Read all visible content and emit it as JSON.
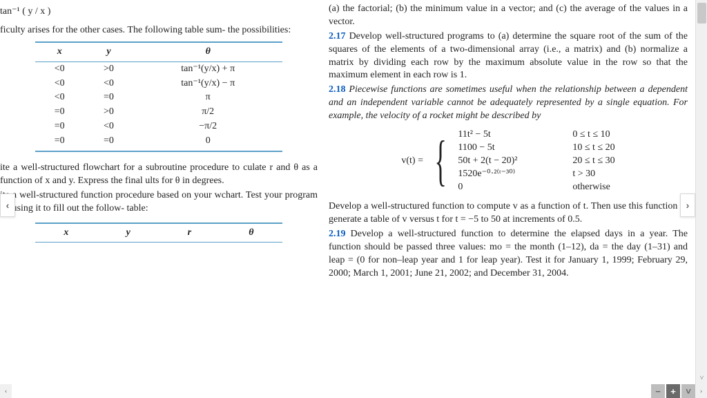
{
  "left": {
    "eq1": "tan⁻¹ ( y / x )",
    "p1": "ficulty arises for the other cases. The following table sum- the possibilities:",
    "table": {
      "headers": [
        "x",
        "y",
        "θ"
      ],
      "rows": [
        [
          "<0",
          ">0",
          "tan⁻¹(y/x) + π"
        ],
        [
          "<0",
          "<0",
          "tan⁻¹(y/x) − π"
        ],
        [
          "<0",
          "=0",
          "π"
        ],
        [
          "=0",
          ">0",
          "π/2"
        ],
        [
          "=0",
          "<0",
          "−π/2"
        ],
        [
          "=0",
          "=0",
          "0"
        ]
      ]
    },
    "p2": "ite a well-structured flowchart for a subroutine procedure to culate r and θ as a function of x and y. Express the final ults for θ in degrees.",
    "p3": "ite a well-structured function procedure based on your wchart. Test your program by using it to fill out the follow- table:",
    "table2_headers": [
      "x",
      "y",
      "r",
      "θ"
    ]
  },
  "right": {
    "p0": "(a) the factorial; (b) the minimum value in a vector; and (c) the average of the values in a vector.",
    "p217_num": "2.17",
    "p217": " Develop well-structured programs to (a) determine the square root of the sum of the squares of the elements of a two-dimensional array (i.e., a matrix) and (b) normalize a matrix by dividing each row by the maximum absolute value in the row so that the maximum element in each row is 1.",
    "p218_num": "2.18",
    "p218a": " Piecewise functions are sometimes useful when the relationship between a dependent and an independent variable cannot be adequately represented by a single equation. For example, the velocity of a rocket might be described by",
    "vlabel": "v(t) = ",
    "piecewise": [
      {
        "expr": "11t² − 5t",
        "cond": "0 ≤ t ≤ 10"
      },
      {
        "expr": "1100 − 5t",
        "cond": "10 ≤ t ≤ 20"
      },
      {
        "expr": "50t + 2(t − 20)²",
        "cond": "20 ≤ t ≤ 30"
      },
      {
        "expr": "1520e⁻⁰·²⁽ᵗ⁻³⁰⁾",
        "cond": "t > 30"
      },
      {
        "expr": "0",
        "cond": "otherwise"
      }
    ],
    "p218b": "Develop a well-structured function to compute v as a function of t. Then use this function to generate a table of v versus t for t = −5 to 50 at increments of 0.5.",
    "p219_num": "2.19",
    "p219": " Develop a well-structured function to determine the elapsed days in a year. The function should be passed three values: mo = the month (1–12), da = the day (1–31) and leap = (0 for non–leap year and 1 for leap year). Test it for January 1, 1999; February 29, 2000; March 1, 2001; June 21, 2002; and December 31, 2004."
  },
  "ui": {
    "prev": "‹",
    "next": "›",
    "minus": "−",
    "plus": "+",
    "down": "˅",
    "up": "˄",
    "right": "›",
    "left": "‹"
  },
  "colors": {
    "problem_number": "#0a5bbf",
    "table_rule": "#5aa0c8",
    "scrollbar_bg": "#f0f0f0",
    "scrollbar_thumb": "#c8c8c8",
    "btn_dark": "#6a6a6a",
    "btn_light": "#bdbdbd"
  }
}
